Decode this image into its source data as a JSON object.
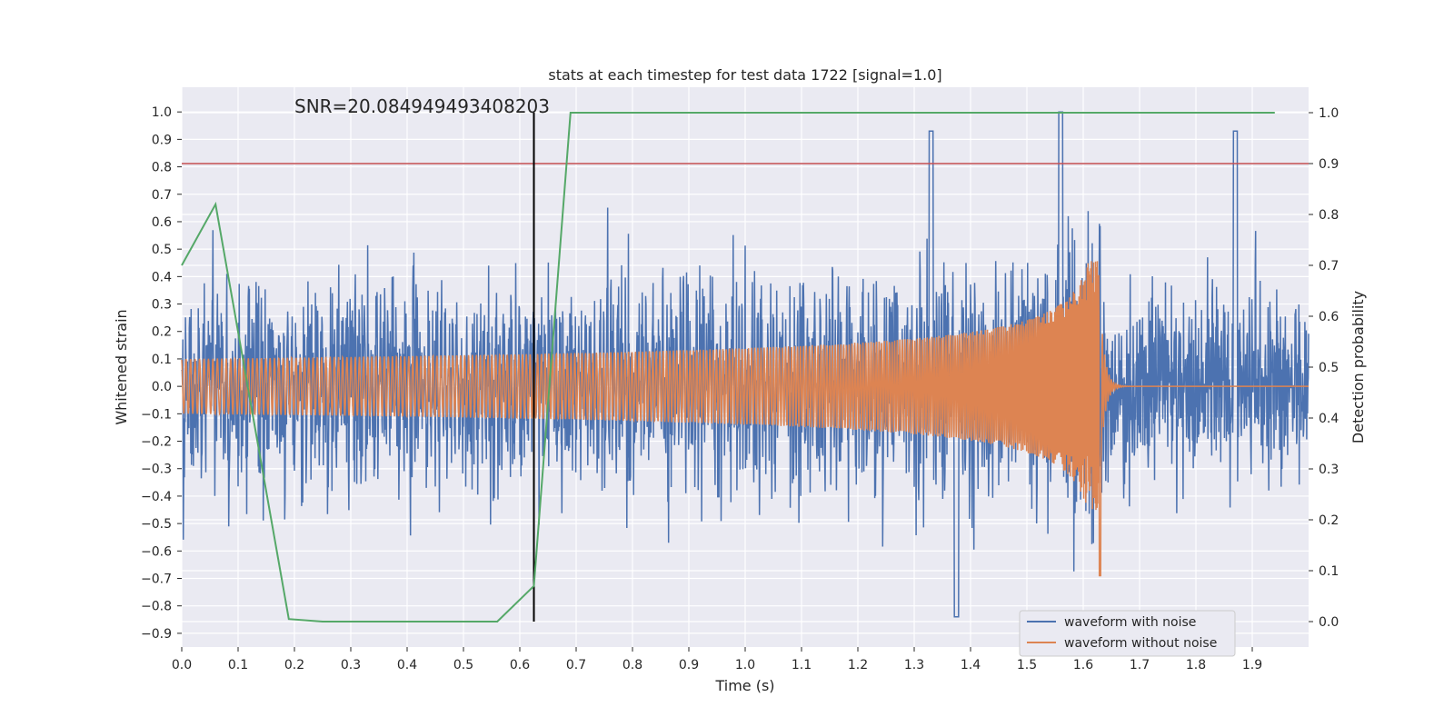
{
  "chart_data": {
    "type": "line",
    "title": "stats at each timestep for test data 1722 [signal=1.0]",
    "annotation": "SNR=20.084949493408203",
    "xlabel": "Time (s)",
    "ylabel_left": "Whitened strain",
    "ylabel_right": "Detection probability",
    "xlim": [
      0.0,
      2.0
    ],
    "ylim_left": [
      -0.95,
      1.09
    ],
    "ylim_right": [
      -0.05,
      1.05
    ],
    "x_ticks": [
      "0.0",
      "0.1",
      "0.2",
      "0.3",
      "0.4",
      "0.5",
      "0.6",
      "0.7",
      "0.8",
      "0.9",
      "1.0",
      "1.1",
      "1.2",
      "1.3",
      "1.4",
      "1.5",
      "1.6",
      "1.7",
      "1.8",
      "1.9"
    ],
    "y_ticks_left": [
      "1.0",
      "0.9",
      "0.8",
      "0.7",
      "0.6",
      "0.5",
      "0.4",
      "0.3",
      "0.2",
      "0.1",
      "0.0",
      "−0.1",
      "−0.2",
      "−0.3",
      "−0.4",
      "−0.5",
      "−0.6",
      "−0.7",
      "−0.8",
      "−0.9"
    ],
    "y_ticks_right": [
      "1.0",
      "0.9",
      "0.8",
      "0.7",
      "0.6",
      "0.5",
      "0.4",
      "0.3",
      "0.2",
      "0.1",
      "0.0"
    ],
    "grid": true,
    "legend_position": "lower-right",
    "series": [
      {
        "name": "waveform with noise",
        "color": "#4c72b0",
        "axis": "left",
        "kind": "noisy-strain",
        "approx_range": [
          -0.85,
          1.0
        ]
      },
      {
        "name": "waveform without noise",
        "color": "#dd8452",
        "axis": "left",
        "kind": "chirp",
        "merger_time": 1.63,
        "peak_value": 0.57,
        "min_value": -0.69
      },
      {
        "name": "",
        "color": "#55a868",
        "axis": "right",
        "kind": "detection-probability",
        "x": [
          0.0,
          0.06,
          0.19,
          0.25,
          0.56,
          0.625,
          0.69,
          1.94
        ],
        "y": [
          0.7,
          0.82,
          0.005,
          0.0,
          0.0,
          0.07,
          1.0,
          1.0
        ]
      }
    ],
    "threshold_line": {
      "value": 0.9,
      "axis": "right",
      "color": "#c44e52"
    },
    "vertical_marker": {
      "x": 0.625,
      "color": "#000000"
    }
  }
}
